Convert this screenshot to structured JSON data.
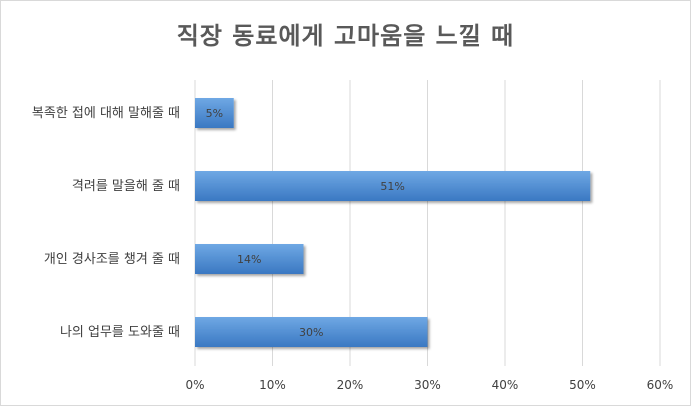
{
  "chart_data": {
    "type": "bar",
    "orientation": "horizontal",
    "title": "직장 동료에게 고마움을 느낄 때",
    "categories": [
      "복족한 접에 대해 말해줄 때",
      "격려를 말을해 줄 때",
      "개인 경사조를 챙겨 줄 때",
      "나의 업무를 도와줄 때"
    ],
    "values": [
      5,
      51,
      14,
      30
    ],
    "data_labels": [
      "5%",
      "51%",
      "14%",
      "30%"
    ],
    "xlim": [
      0,
      60
    ],
    "x_ticks": [
      "0%",
      "10%",
      "20%",
      "30%",
      "40%",
      "50%",
      "60%"
    ],
    "grid": true,
    "legend": "none",
    "colors": {
      "bar_light": "#6fa8e4",
      "bar_dark": "#3a78c2",
      "grid": "#d9d9d9",
      "title": "#595959"
    }
  }
}
